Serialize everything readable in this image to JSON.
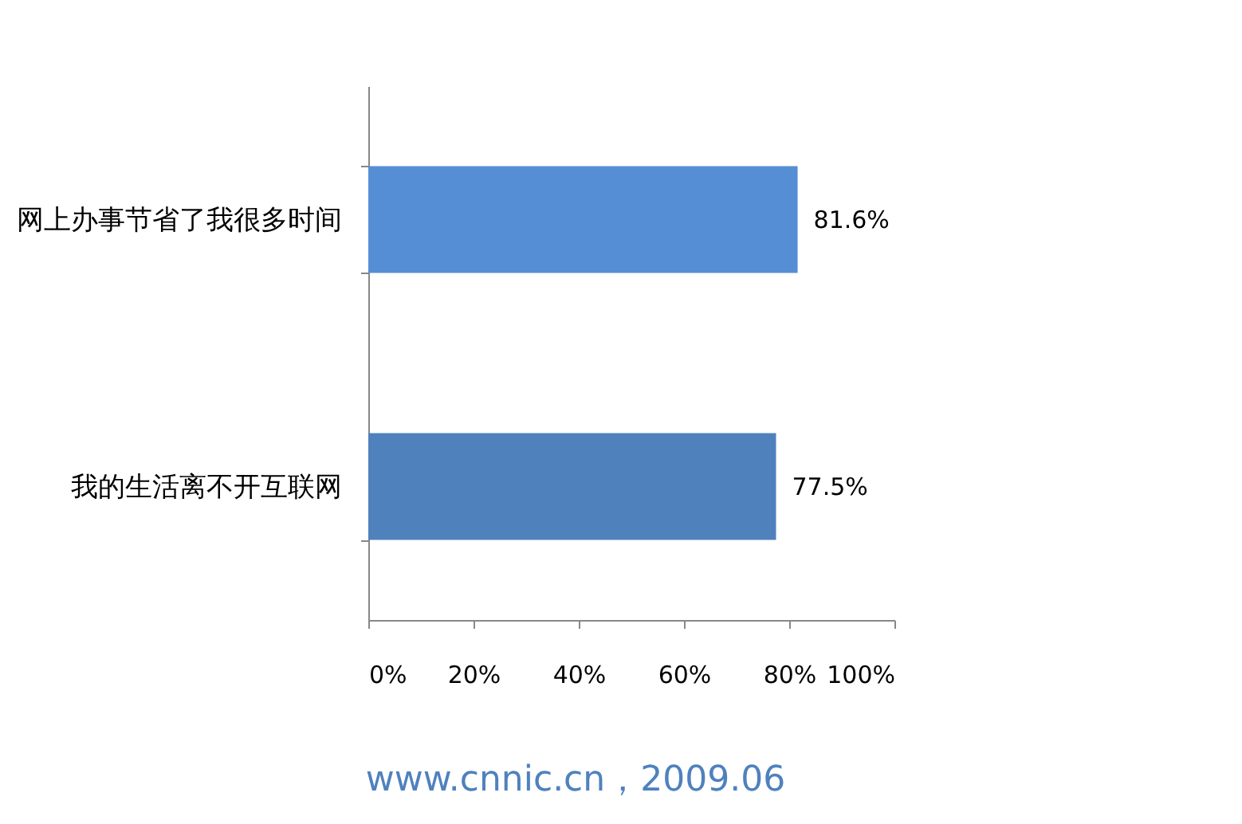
{
  "chart_data": {
    "type": "bar",
    "orientation": "horizontal",
    "categories": [
      "网上办事节省了我很多时间",
      "我的生活离不开互联网"
    ],
    "values": [
      81.6,
      77.5
    ],
    "colors": [
      "#558ed5",
      "#4f81bd"
    ],
    "value_labels": [
      "81.6%",
      "77.5%"
    ],
    "xlim": [
      0,
      100
    ],
    "xticks": [
      {
        "value": 0,
        "label": "0%"
      },
      {
        "value": 20,
        "label": "20%"
      },
      {
        "value": 40,
        "label": "40%"
      },
      {
        "value": 60,
        "label": "60%"
      },
      {
        "value": 80,
        "label": "80%"
      },
      {
        "value": 100,
        "label": "100%"
      }
    ],
    "grid": false,
    "annotations": [
      "www.cnnic.cn，2009.06"
    ]
  }
}
